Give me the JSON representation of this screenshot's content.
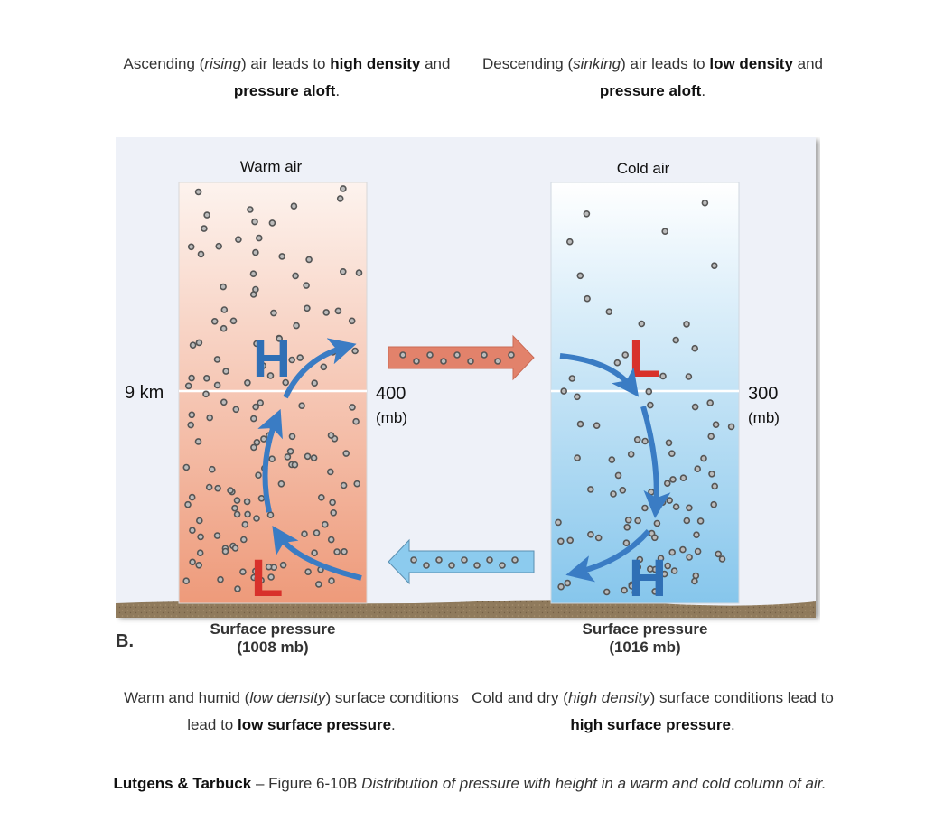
{
  "captions": {
    "top_left": {
      "parts": [
        {
          "t": "Ascending (",
          "s": "n"
        },
        {
          "t": "rising",
          "s": "i"
        },
        {
          "t": ") air leads to ",
          "s": "n"
        },
        {
          "t": "high density",
          "s": "b"
        },
        {
          "t": " and ",
          "s": "n"
        },
        {
          "t": "pressure aloft",
          "s": "b"
        },
        {
          "t": ".",
          "s": "n"
        }
      ]
    },
    "top_right": {
      "parts": [
        {
          "t": "Descending (",
          "s": "n"
        },
        {
          "t": "sinking",
          "s": "i"
        },
        {
          "t": ") air leads to ",
          "s": "n"
        },
        {
          "t": "low density",
          "s": "b"
        },
        {
          "t": " and ",
          "s": "n"
        },
        {
          "t": "pressure aloft",
          "s": "b"
        },
        {
          "t": ".",
          "s": "n"
        }
      ]
    },
    "bottom_left": {
      "parts": [
        {
          "t": "Warm and humid (",
          "s": "n"
        },
        {
          "t": "low density",
          "s": "i"
        },
        {
          "t": ") surface conditions lead to ",
          "s": "n"
        },
        {
          "t": "low surface pressure",
          "s": "b"
        },
        {
          "t": ".",
          "s": "n"
        }
      ]
    },
    "bottom_right": {
      "parts": [
        {
          "t": "Cold and dry (",
          "s": "n"
        },
        {
          "t": "high density",
          "s": "i"
        },
        {
          "t": ") surface conditions lead to ",
          "s": "n"
        },
        {
          "t": "high surface pressure",
          "s": "b"
        },
        {
          "t": ".",
          "s": "n"
        }
      ]
    }
  },
  "figure_caption": {
    "authors": "Lutgens & Tarbuck",
    "separator": " – Figure 6-10B ",
    "description": "Distribution of pressure with height in a warm and cold column of air."
  },
  "diagram": {
    "panel_label": "B.",
    "height_label": "9 km",
    "warm_column": {
      "title": "Warm air",
      "upper_symbol": "H",
      "surface_symbol": "L",
      "pressure_aloft": "400",
      "pressure_unit": "(mb)",
      "surface_label": "Surface pressure",
      "surface_value": "(1008 mb)"
    },
    "cold_column": {
      "title": "Cold air",
      "upper_symbol": "L",
      "surface_symbol": "H",
      "pressure_aloft": "300",
      "pressure_unit": "(mb)",
      "surface_label": "Surface pressure",
      "surface_value": "(1016 mb)"
    },
    "colors": {
      "warm_top": "#fdf3ee",
      "warm_bottom": "#ee9a7a",
      "cold_top": "#ffffff",
      "cold_bottom": "#86c6ec",
      "H_blue": "#2f6fb5",
      "L_red": "#d8312b",
      "flow_arrow": "#3a7cc4",
      "upper_arrow": "#e0806a",
      "surface_arrow": "#8ccbee",
      "ground": "#8b7355",
      "background": "#eef1f8"
    }
  }
}
